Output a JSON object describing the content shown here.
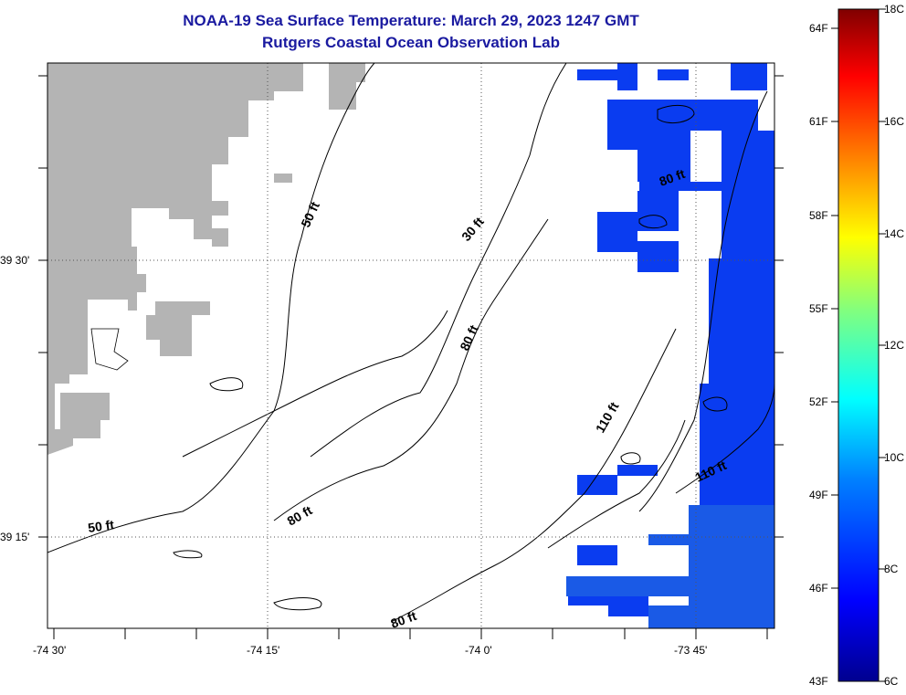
{
  "title": "NOAA-19 Sea Surface Temperature:  March 29, 2023 1247 GMT",
  "subtitle": "Rutgers Coastal Ocean Observation Lab",
  "y_axis": {
    "labels": [
      "39 30'",
      "39 15'"
    ],
    "values": [
      39.5,
      39.25
    ]
  },
  "x_axis": {
    "labels": [
      "-74 30'",
      "-74 15'",
      "-74 0'",
      "-73 45'"
    ],
    "values": [
      -74.5,
      -74.25,
      -74.0,
      -73.75
    ]
  },
  "depth_contours": {
    "labels": [
      "50 ft",
      "30 ft",
      "80 ft",
      "80 ft",
      "110 ft",
      "110 ft",
      "80 ft",
      "80 ft",
      "50 ft"
    ]
  },
  "colorbar": {
    "range_c": [
      6,
      18
    ],
    "range_f": [
      43,
      64
    ],
    "celsius_labels": [
      "18C",
      "16C",
      "14C",
      "12C",
      "10C",
      "8C",
      "6C"
    ],
    "fahrenheit_labels": [
      "64F",
      "61F",
      "58F",
      "55F",
      "52F",
      "49F",
      "46F",
      "43F"
    ],
    "colors": [
      "#00008f",
      "#0000ff",
      "#0080ff",
      "#00ffff",
      "#80ff80",
      "#ffff00",
      "#ff8000",
      "#ff0000",
      "#800000"
    ]
  },
  "colors": {
    "land": "#b4b4b4",
    "water_sst": "#0a3cf0",
    "water_sst_warm": "#1a5ae6",
    "title": "#1a1aa0"
  }
}
